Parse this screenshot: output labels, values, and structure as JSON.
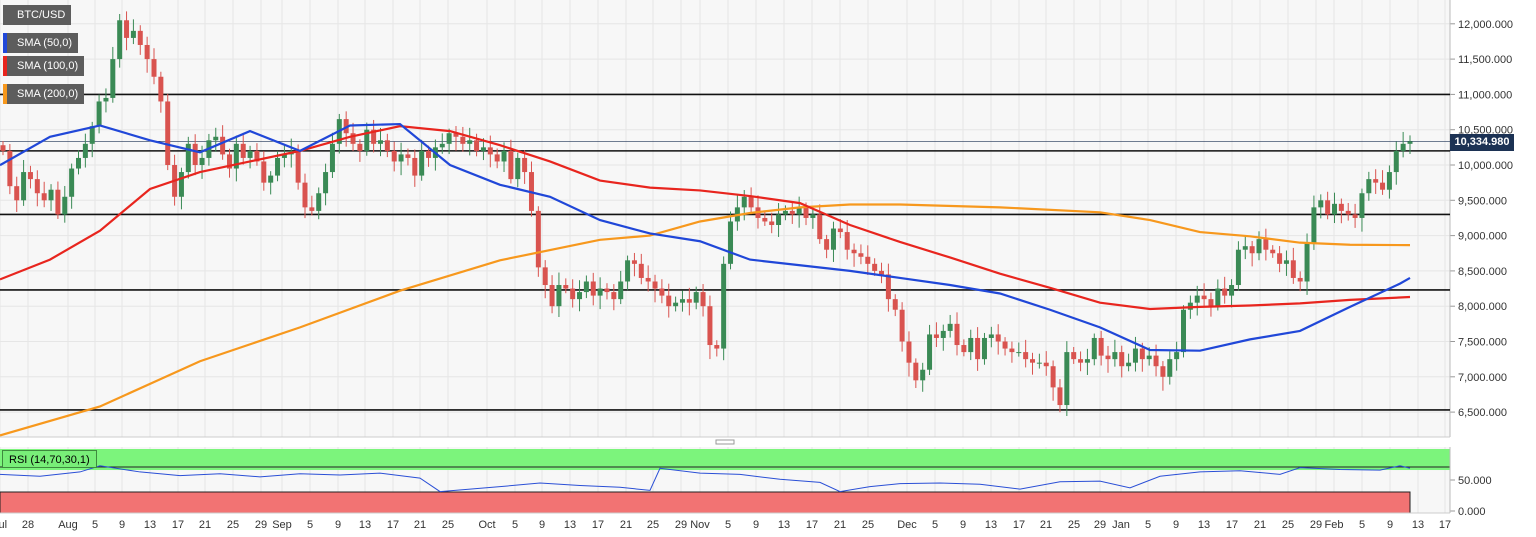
{
  "labels": {
    "symbol": "BTC/USD",
    "sma50": "SMA (50,0)",
    "sma100": "SMA (100,0)",
    "sma200": "SMA (200,0)",
    "rsi": "RSI (14,70,30,1)",
    "current_price": "10,334.980"
  },
  "colors": {
    "up": "#3a8a55",
    "down": "#d9534f",
    "sma50": "#2047d8",
    "sma100": "#e8251e",
    "sma200": "#f7981d",
    "rsi_line": "#2a4fd6",
    "rsi_over": "#7cf47c",
    "rsi_under": "#f27373"
  },
  "chart_data": {
    "type": "candlestick",
    "price_axis": {
      "min": 6200,
      "max": 12300,
      "ticks": [
        "6,500.000",
        "7,000.000",
        "7,500.000",
        "8,000.000",
        "8,500.000",
        "9,000.000",
        "9,500.000",
        "10,000.000",
        "10,500.000",
        "11,000.000",
        "11,500.000",
        "12,000.000"
      ],
      "tick_values": [
        6500,
        7000,
        7500,
        8000,
        8500,
        9000,
        9500,
        10000,
        10500,
        11000,
        11500,
        12000
      ]
    },
    "rsi_axis": {
      "ticks": [
        "0.000",
        "50.000"
      ],
      "tick_values": [
        0,
        50
      ],
      "overbought": 70,
      "oversold": 30
    },
    "x_ticks": [
      "Jul",
      "28",
      "Aug",
      "5",
      "9",
      "13",
      "17",
      "21",
      "25",
      "29",
      "Sep",
      "5",
      "9",
      "13",
      "17",
      "21",
      "25",
      "Oct",
      "5",
      "9",
      "13",
      "17",
      "21",
      "25",
      "29",
      "Nov",
      "5",
      "9",
      "13",
      "17",
      "21",
      "25",
      "Dec",
      "5",
      "9",
      "13",
      "17",
      "21",
      "25",
      "29",
      "Jan",
      "5",
      "9",
      "13",
      "17",
      "21",
      "25",
      "29",
      "Feb",
      "5",
      "9",
      "13",
      "17"
    ],
    "support_resistance": [
      11000,
      10200,
      9300,
      8230,
      6530
    ],
    "current_price": 10334.98,
    "candles_close": [
      10200,
      9700,
      9500,
      9900,
      9800,
      9600,
      9500,
      9650,
      9300,
      9550,
      9950,
      10100,
      10300,
      10550,
      10900,
      10950,
      11500,
      12050,
      11800,
      11900,
      11700,
      11500,
      11250,
      10900,
      10000,
      9550,
      9900,
      10300,
      10000,
      10100,
      10350,
      10400,
      10150,
      9950,
      10300,
      10100,
      10200,
      10050,
      9750,
      9850,
      10100,
      10150,
      10200,
      9750,
      9400,
      9350,
      9600,
      9900,
      10300,
      10650,
      10450,
      10300,
      10200,
      10500,
      10300,
      10350,
      10200,
      10050,
      10150,
      10100,
      9850,
      10200,
      10100,
      10250,
      10300,
      10450,
      10400,
      10300,
      10350,
      10200,
      10250,
      10150,
      10050,
      10200,
      9800,
      10100,
      9900,
      9350,
      8550,
      8300,
      8000,
      8300,
      8250,
      8100,
      8200,
      8350,
      8150,
      8250,
      8200,
      8100,
      8350,
      8650,
      8600,
      8400,
      8350,
      8250,
      8150,
      8000,
      8050,
      8100,
      8050,
      8200,
      8000,
      7450,
      7400,
      8600,
      9200,
      9400,
      9550,
      9400,
      9250,
      9200,
      9150,
      9300,
      9350,
      9300,
      9400,
      9250,
      9300,
      8950,
      8800,
      9100,
      9050,
      8800,
      8750,
      8700,
      8600,
      8500,
      8450,
      8100,
      7950,
      7500,
      7200,
      6950,
      7100,
      7600,
      7550,
      7650,
      7750,
      7450,
      7350,
      7550,
      7250,
      7550,
      7600,
      7500,
      7400,
      7350,
      7350,
      7250,
      7200,
      7200,
      7150,
      6850,
      6600,
      7350,
      7250,
      7200,
      7250,
      7550,
      7300,
      7250,
      7350,
      7150,
      7200,
      7400,
      7250,
      7300,
      7150,
      7000,
      7250,
      7350,
      7950,
      8050,
      8150,
      8100,
      8000,
      8250,
      8150,
      8300,
      8800,
      8850,
      8750,
      8950,
      8800,
      8750,
      8600,
      8650,
      8400,
      8350,
      8900,
      9400,
      9500,
      9300,
      9450,
      9350,
      9300,
      9250,
      9600,
      9800,
      9750,
      9650,
      9900,
      10200,
      10300,
      10335
    ],
    "sma50": [
      [
        0,
        9998
      ],
      [
        50,
        10400
      ],
      [
        100,
        10560
      ],
      [
        150,
        10350
      ],
      [
        200,
        10180
      ],
      [
        250,
        10480
      ],
      [
        300,
        10200
      ],
      [
        350,
        10560
      ],
      [
        400,
        10580
      ],
      [
        450,
        10000
      ],
      [
        500,
        9720
      ],
      [
        550,
        9550
      ],
      [
        600,
        9220
      ],
      [
        650,
        9030
      ],
      [
        700,
        8920
      ],
      [
        750,
        8660
      ],
      [
        800,
        8580
      ],
      [
        850,
        8500
      ],
      [
        900,
        8400
      ],
      [
        950,
        8300
      ],
      [
        1000,
        8180
      ],
      [
        1050,
        7950
      ],
      [
        1100,
        7700
      ],
      [
        1150,
        7380
      ],
      [
        1200,
        7370
      ],
      [
        1250,
        7530
      ],
      [
        1300,
        7650
      ],
      [
        1350,
        7990
      ],
      [
        1400,
        8320
      ],
      [
        1410,
        8400
      ]
    ],
    "sma100": [
      [
        0,
        8380
      ],
      [
        50,
        8660
      ],
      [
        100,
        9070
      ],
      [
        150,
        9660
      ],
      [
        200,
        9900
      ],
      [
        250,
        10050
      ],
      [
        300,
        10200
      ],
      [
        350,
        10400
      ],
      [
        400,
        10550
      ],
      [
        450,
        10480
      ],
      [
        500,
        10280
      ],
      [
        550,
        10050
      ],
      [
        600,
        9780
      ],
      [
        650,
        9680
      ],
      [
        700,
        9640
      ],
      [
        750,
        9560
      ],
      [
        800,
        9460
      ],
      [
        850,
        9150
      ],
      [
        900,
        8910
      ],
      [
        950,
        8690
      ],
      [
        1000,
        8460
      ],
      [
        1050,
        8260
      ],
      [
        1100,
        8050
      ],
      [
        1150,
        7960
      ],
      [
        1200,
        7990
      ],
      [
        1250,
        8010
      ],
      [
        1300,
        8040
      ],
      [
        1350,
        8090
      ],
      [
        1410,
        8130
      ]
    ],
    "sma200": [
      [
        0,
        6170
      ],
      [
        100,
        6580
      ],
      [
        200,
        7220
      ],
      [
        300,
        7700
      ],
      [
        400,
        8220
      ],
      [
        500,
        8650
      ],
      [
        600,
        8940
      ],
      [
        650,
        9000
      ],
      [
        700,
        9200
      ],
      [
        750,
        9320
      ],
      [
        800,
        9400
      ],
      [
        850,
        9440
      ],
      [
        900,
        9440
      ],
      [
        1000,
        9400
      ],
      [
        1100,
        9330
      ],
      [
        1150,
        9220
      ],
      [
        1200,
        9050
      ],
      [
        1250,
        8990
      ],
      [
        1300,
        8900
      ],
      [
        1350,
        8870
      ],
      [
        1410,
        8865
      ]
    ],
    "rsi": [
      [
        0,
        58
      ],
      [
        40,
        55
      ],
      [
        80,
        62
      ],
      [
        100,
        72
      ],
      [
        140,
        62
      ],
      [
        180,
        56
      ],
      [
        220,
        59
      ],
      [
        260,
        54
      ],
      [
        300,
        59
      ],
      [
        340,
        57
      ],
      [
        380,
        60
      ],
      [
        420,
        52
      ],
      [
        440,
        30
      ],
      [
        470,
        34
      ],
      [
        500,
        38
      ],
      [
        540,
        44
      ],
      [
        580,
        40
      ],
      [
        620,
        37
      ],
      [
        650,
        32
      ],
      [
        660,
        68
      ],
      [
        700,
        60
      ],
      [
        740,
        58
      ],
      [
        780,
        50
      ],
      [
        820,
        45
      ],
      [
        840,
        30
      ],
      [
        870,
        38
      ],
      [
        900,
        43
      ],
      [
        940,
        44
      ],
      [
        980,
        42
      ],
      [
        1020,
        34
      ],
      [
        1060,
        46
      ],
      [
        1100,
        47
      ],
      [
        1130,
        36
      ],
      [
        1160,
        55
      ],
      [
        1200,
        62
      ],
      [
        1240,
        64
      ],
      [
        1280,
        58
      ],
      [
        1300,
        69
      ],
      [
        1340,
        66
      ],
      [
        1380,
        65
      ],
      [
        1400,
        72
      ],
      [
        1410,
        68
      ]
    ]
  }
}
